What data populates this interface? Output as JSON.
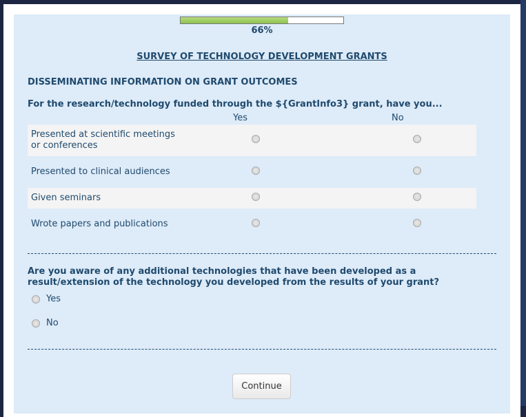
{
  "progress": {
    "percent": 66,
    "label": "66%",
    "fill_color": "#9acd5a"
  },
  "survey": {
    "title": "SURVEY OF TECHNOLOGY DEVELOPMENT GRANTS",
    "section": "DISSEMINATING INFORMATION ON GRANT OUTCOMES"
  },
  "matrix": {
    "question": "For the research/technology funded through the ${GrantInfo3} grant, have you...",
    "columns": [
      "Yes",
      "No"
    ],
    "rows": [
      {
        "label": "Presented at scientific meetings or conferences"
      },
      {
        "label": "Presented to clinical audiences"
      },
      {
        "label": "Given seminars"
      },
      {
        "label": "Wrote papers and publications"
      }
    ]
  },
  "q2": {
    "question": "Are you aware of any additional technologies that have been developed as a result/extension of the technology you developed from the results of your grant?",
    "options": [
      "Yes",
      "No"
    ]
  },
  "buttons": {
    "continue": "Continue"
  }
}
